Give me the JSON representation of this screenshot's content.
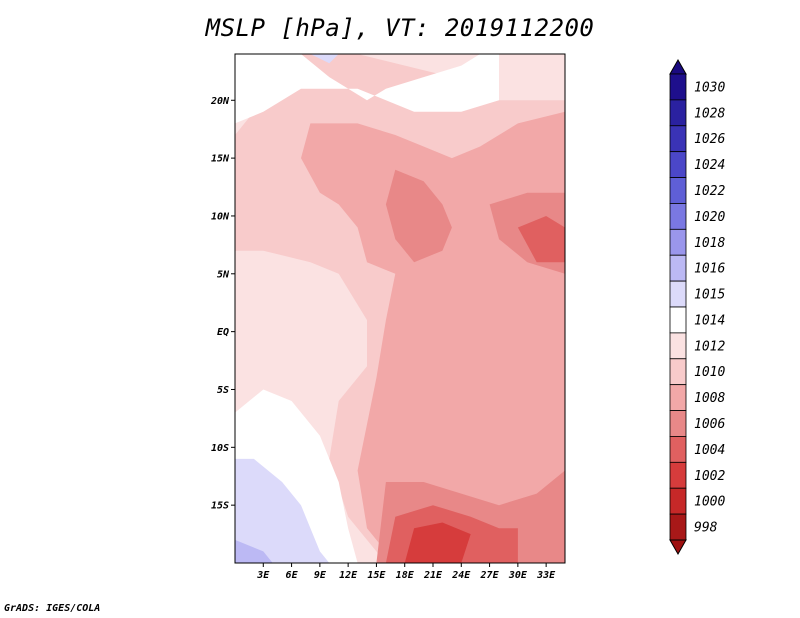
{
  "title": "MSLP [hPa], VT: 2019112200",
  "footer": "GrADS: IGES/COLA",
  "colors": {
    "low": "#b2182b",
    "mid": "#fbe7e7",
    "high": "#1a1a8e",
    "border": "#000000"
  },
  "chart_data": {
    "type": "heatmap",
    "variable": "MSLP",
    "units": "hPa",
    "valid_time": "2019112200",
    "xlim": [
      0,
      35
    ],
    "ylim": [
      -20,
      24
    ],
    "x_ticks": [
      {
        "value": 3,
        "label": "3E"
      },
      {
        "value": 6,
        "label": "6E"
      },
      {
        "value": 9,
        "label": "9E"
      },
      {
        "value": 12,
        "label": "12E"
      },
      {
        "value": 15,
        "label": "15E"
      },
      {
        "value": 18,
        "label": "18E"
      },
      {
        "value": 21,
        "label": "21E"
      },
      {
        "value": 24,
        "label": "24E"
      },
      {
        "value": 27,
        "label": "27E"
      },
      {
        "value": 30,
        "label": "30E"
      },
      {
        "value": 33,
        "label": "33E"
      }
    ],
    "y_ticks": [
      {
        "value": 20,
        "label": "20N"
      },
      {
        "value": 15,
        "label": "15N"
      },
      {
        "value": 10,
        "label": "10N"
      },
      {
        "value": 5,
        "label": "5N"
      },
      {
        "value": 0,
        "label": "EQ"
      },
      {
        "value": -5,
        "label": "5S"
      },
      {
        "value": -10,
        "label": "10S"
      },
      {
        "value": -15,
        "label": "15S"
      }
    ],
    "colorbar": {
      "orientation": "vertical",
      "placement": "right",
      "levels": [
        {
          "label": "1030",
          "color": "#1e0f8c"
        },
        {
          "label": "1028",
          "color": "#2a21a0"
        },
        {
          "label": "1026",
          "color": "#3a33b6"
        },
        {
          "label": "1024",
          "color": "#4b47c8"
        },
        {
          "label": "1022",
          "color": "#5f5fd6"
        },
        {
          "label": "1020",
          "color": "#7a78e2"
        },
        {
          "label": "1018",
          "color": "#9a96ec"
        },
        {
          "label": "1016",
          "color": "#bcb9f4"
        },
        {
          "label": "1015",
          "color": "#dcdafa"
        },
        {
          "label": "1014",
          "color": "#ffffff"
        },
        {
          "label": "1012",
          "color": "#fbe2e2"
        },
        {
          "label": "1010",
          "color": "#f8cbcb"
        },
        {
          "label": "1008",
          "color": "#f2a8a8"
        },
        {
          "label": "1006",
          "color": "#e88888"
        },
        {
          "label": "1004",
          "color": "#e06060"
        },
        {
          "label": "1002",
          "color": "#d63c3c"
        },
        {
          "label": "1000",
          "color": "#c62828"
        },
        {
          "label": "998",
          "color": "#a81818"
        }
      ],
      "top_color": "#1a0a80",
      "bottom_color": "#9e1010"
    },
    "regions": [
      {
        "level": "1012",
        "polygon": [
          [
            0,
            24
          ],
          [
            35,
            24
          ],
          [
            35,
            -20
          ],
          [
            0,
            -20
          ]
        ]
      },
      {
        "level": "1010",
        "polygon": [
          [
            6,
            24
          ],
          [
            13,
            24
          ],
          [
            23,
            22
          ],
          [
            28,
            20
          ],
          [
            35,
            20
          ],
          [
            35,
            -20
          ],
          [
            16,
            -20
          ],
          [
            12,
            -16
          ],
          [
            10,
            -11
          ],
          [
            11,
            -6
          ],
          [
            14,
            -3
          ],
          [
            14,
            1
          ],
          [
            11,
            5
          ],
          [
            8,
            6
          ],
          [
            3,
            7
          ],
          [
            0,
            7
          ],
          [
            0,
            17
          ],
          [
            5,
            22
          ]
        ]
      },
      {
        "level": "1008",
        "polygon": [
          [
            8,
            18
          ],
          [
            13,
            18
          ],
          [
            17,
            17
          ],
          [
            20,
            16
          ],
          [
            23,
            15
          ],
          [
            26,
            16
          ],
          [
            30,
            18
          ],
          [
            35,
            19
          ],
          [
            35,
            -20
          ],
          [
            17,
            -20
          ],
          [
            14,
            -17
          ],
          [
            13,
            -12
          ],
          [
            14,
            -8
          ],
          [
            15,
            -4
          ],
          [
            16,
            1
          ],
          [
            17,
            5
          ],
          [
            14,
            6
          ],
          [
            13,
            9
          ],
          [
            11,
            11
          ],
          [
            9,
            12
          ],
          [
            7,
            15
          ]
        ]
      },
      {
        "level": "1006",
        "polygon": [
          [
            17,
            14
          ],
          [
            20,
            13
          ],
          [
            22,
            11
          ],
          [
            23,
            9
          ],
          [
            22,
            7
          ],
          [
            19,
            6
          ],
          [
            17,
            8
          ],
          [
            16,
            11
          ]
        ]
      },
      {
        "level": "1006",
        "polygon": [
          [
            27,
            11
          ],
          [
            31,
            12
          ],
          [
            35,
            12
          ],
          [
            35,
            5
          ],
          [
            31,
            6
          ],
          [
            28,
            8
          ]
        ]
      },
      {
        "level": "1006",
        "polygon": [
          [
            16,
            -13
          ],
          [
            20,
            -13
          ],
          [
            24,
            -14
          ],
          [
            28,
            -15
          ],
          [
            32,
            -14
          ],
          [
            35,
            -12
          ],
          [
            35,
            -20
          ],
          [
            15,
            -20
          ]
        ]
      },
      {
        "level": "1004",
        "polygon": [
          [
            30,
            9
          ],
          [
            33,
            10
          ],
          [
            35,
            9
          ],
          [
            35,
            6
          ],
          [
            32,
            6
          ]
        ]
      },
      {
        "level": "1004",
        "polygon": [
          [
            17,
            -16
          ],
          [
            21,
            -15
          ],
          [
            25,
            -16
          ],
          [
            28,
            -17
          ],
          [
            30,
            -17
          ],
          [
            30,
            -20
          ],
          [
            16,
            -20
          ]
        ]
      },
      {
        "level": "1002",
        "polygon": [
          [
            19,
            -17
          ],
          [
            22,
            -16.5
          ],
          [
            25,
            -17.5
          ],
          [
            24,
            -20
          ],
          [
            18,
            -20
          ]
        ]
      },
      {
        "level": "1014",
        "polygon": [
          [
            0,
            24
          ],
          [
            7,
            24
          ],
          [
            10,
            22
          ],
          [
            14,
            20
          ],
          [
            16,
            21
          ],
          [
            20,
            22
          ],
          [
            24,
            23
          ],
          [
            26,
            24
          ],
          [
            28,
            24
          ],
          [
            28,
            20
          ],
          [
            24,
            19
          ],
          [
            19,
            19
          ],
          [
            13,
            21
          ],
          [
            7,
            21
          ],
          [
            3,
            19
          ],
          [
            0,
            18
          ]
        ]
      },
      {
        "level": "1014",
        "polygon": [
          [
            0,
            -7
          ],
          [
            3,
            -5
          ],
          [
            6,
            -6
          ],
          [
            9,
            -9
          ],
          [
            11,
            -13
          ],
          [
            12,
            -17
          ],
          [
            13,
            -20
          ],
          [
            0,
            -20
          ]
        ]
      },
      {
        "level": "1015",
        "polygon": [
          [
            0,
            -11
          ],
          [
            2,
            -11
          ],
          [
            5,
            -13
          ],
          [
            7,
            -15
          ],
          [
            8,
            -17
          ],
          [
            9,
            -19
          ],
          [
            10,
            -20
          ],
          [
            0,
            -20
          ]
        ]
      },
      {
        "level": "1016",
        "polygon": [
          [
            0,
            -18
          ],
          [
            3,
            -19
          ],
          [
            4,
            -20
          ],
          [
            0,
            -20
          ]
        ]
      },
      {
        "level": "1015",
        "polygon": [
          [
            8,
            24
          ],
          [
            11,
            24
          ],
          [
            10,
            23.2
          ]
        ]
      }
    ]
  }
}
